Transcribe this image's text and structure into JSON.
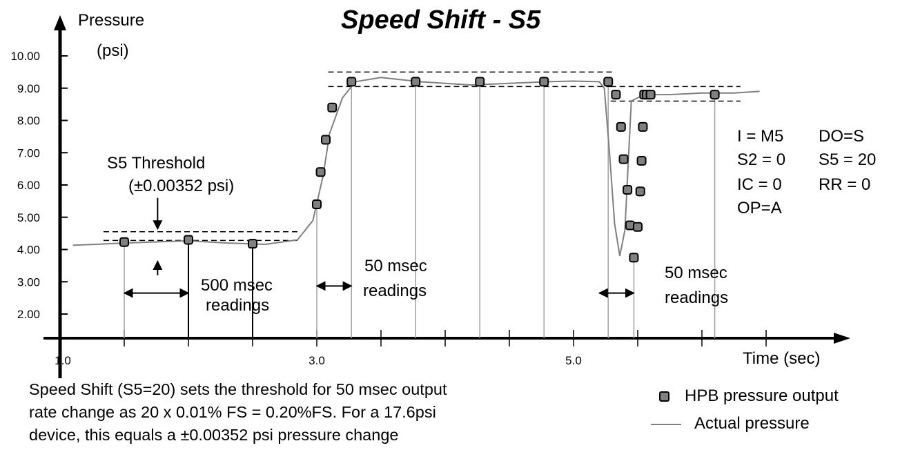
{
  "title": "Speed Shift - S5",
  "caption": [
    "Speed Shift (S5=20) sets the threshold for 50 msec output",
    "rate change as 20 x 0.01% FS = 0.20%FS.  For a 17.6psi",
    "device, this equals a ±0.00352 psi pressure change"
  ],
  "annotations": {
    "threshold_title": "S5 Threshold",
    "threshold_value": "(±0.00352 psi)",
    "slow_interval": [
      "500 msec",
      "readings"
    ],
    "fast_interval_1": [
      "50 msec",
      "readings"
    ],
    "fast_interval_2": [
      "50 msec",
      "readings"
    ]
  },
  "settings": [
    [
      "I = M5",
      "DO=S"
    ],
    [
      "S2 = 0",
      "S5 = 20"
    ],
    [
      "IC = 0",
      "RR = 0"
    ],
    [
      "OP=A",
      ""
    ]
  ],
  "legend": [
    {
      "label": "HPB pressure output",
      "symbol": "square-marker"
    },
    {
      "label": "Actual pressure",
      "symbol": "line"
    }
  ],
  "colors": {
    "marker_fill": "#808080",
    "curve": "#7f7f7f",
    "guides": "#a0a0a0"
  },
  "chart_data": {
    "type": "line",
    "title": "Speed Shift - S5",
    "xlabel": "Time (sec)",
    "ylabel": [
      "Pressure",
      "(psi)"
    ],
    "xlim": [
      1.0,
      6.45
    ],
    "ylim": [
      1.0,
      10.2
    ],
    "x_ticks": [
      1.0,
      1.5,
      2.0,
      2.5,
      3.0,
      3.5,
      4.0,
      4.5,
      5.0,
      5.5,
      6.0,
      6.5
    ],
    "x_tick_labels": [
      {
        "x": 1.0,
        "label": "1.0"
      },
      {
        "x": 3.0,
        "label": "3.0"
      },
      {
        "x": 5.0,
        "label": "5.0"
      }
    ],
    "y_ticks": [
      2,
      3,
      4,
      5,
      6,
      7,
      8,
      9,
      10
    ],
    "y_tick_labels": [
      "2.00",
      "3.00",
      "4.00",
      "5.00",
      "6.00",
      "7.00",
      "8.00",
      "9.00",
      "10.00"
    ],
    "grid": false,
    "series": [
      {
        "name": "Actual pressure",
        "style": "line",
        "x": [
          1.1,
          1.5,
          2.0,
          2.3,
          2.6,
          2.85,
          2.97,
          3.05,
          3.1,
          3.2,
          3.3,
          3.5,
          3.8,
          4.0,
          4.2,
          4.5,
          4.8,
          5.0,
          5.2,
          5.24,
          5.28,
          5.32,
          5.36,
          5.4,
          5.45,
          5.55,
          5.75,
          6.0,
          6.25,
          6.45
        ],
        "y": [
          4.13,
          4.2,
          4.27,
          4.2,
          4.16,
          4.3,
          4.9,
          6.3,
          7.6,
          8.7,
          9.2,
          9.33,
          9.2,
          9.15,
          9.1,
          9.15,
          9.2,
          9.22,
          9.2,
          9.0,
          7.0,
          4.8,
          3.8,
          4.6,
          8.6,
          8.8,
          8.8,
          8.85,
          8.85,
          8.9
        ]
      },
      {
        "name": "HPB pressure output",
        "style": "markers",
        "x": [
          1.5,
          2.0,
          2.5,
          3.0,
          3.03,
          3.07,
          3.12,
          3.27,
          3.77,
          4.27,
          4.77,
          5.27,
          5.33,
          5.37,
          5.39,
          5.42,
          5.44,
          5.47,
          5.5,
          5.52,
          5.53,
          5.54,
          5.55,
          5.57,
          5.6,
          6.1
        ],
        "y": [
          4.23,
          4.3,
          4.18,
          5.4,
          6.4,
          7.4,
          8.4,
          9.2,
          9.2,
          9.2,
          9.2,
          9.2,
          8.8,
          7.8,
          6.8,
          5.85,
          4.75,
          3.75,
          4.7,
          5.8,
          6.75,
          7.8,
          8.8,
          8.8,
          8.8,
          8.8
        ]
      }
    ],
    "threshold_bands": [
      {
        "x": [
          1.5,
          2.85
        ],
        "y": [
          4.28,
          4.55
        ]
      },
      {
        "x": [
          3.25,
          5.3
        ],
        "y": [
          9.05,
          9.5
        ]
      },
      {
        "x": [
          5.45,
          6.3
        ],
        "y": [
          8.6,
          9.05
        ]
      }
    ],
    "interval_arrows": [
      {
        "x": [
          1.5,
          2.0
        ],
        "y": 2.65
      },
      {
        "x": [
          3.0,
          3.27
        ],
        "y": 2.87
      },
      {
        "x": [
          5.2,
          5.47
        ],
        "y": 2.65
      }
    ]
  }
}
